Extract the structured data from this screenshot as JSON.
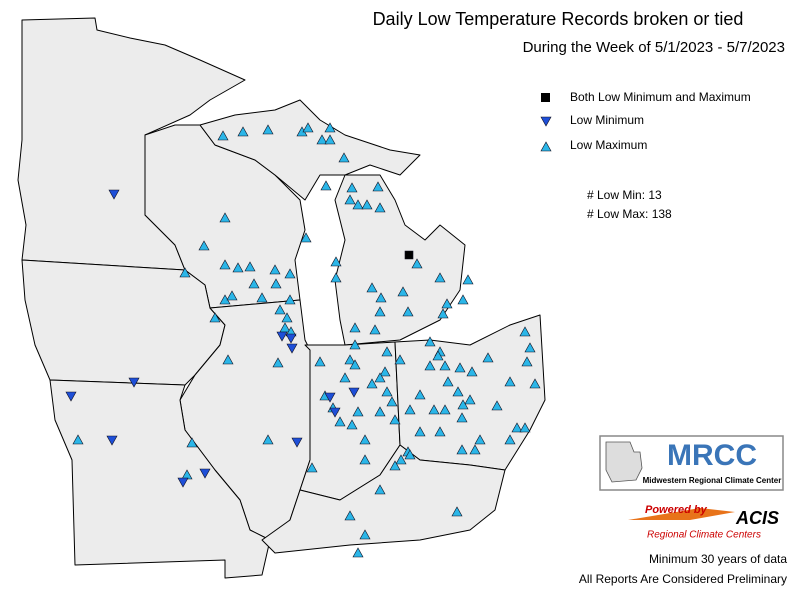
{
  "header": {
    "title": "Daily Low Temperature Records broken or tied",
    "subtitle": "During the Week of 5/1/2023 - 5/7/2023"
  },
  "legend": [
    "Both Low Minimum and Maximum",
    "Low Minimum",
    "Low Maximum"
  ],
  "stats": [
    "# Low Min: 13",
    "# Low Max: 138"
  ],
  "logo": {
    "name": "MRCC",
    "full_name": "Midwestern Regional Climate Center",
    "powered": "Powered by",
    "acis": "ACIS",
    "acis_full": "Regional Climate Centers"
  },
  "notes": [
    "Minimum 30 years of data",
    "All Reports Are Considered Preliminary"
  ]
}
